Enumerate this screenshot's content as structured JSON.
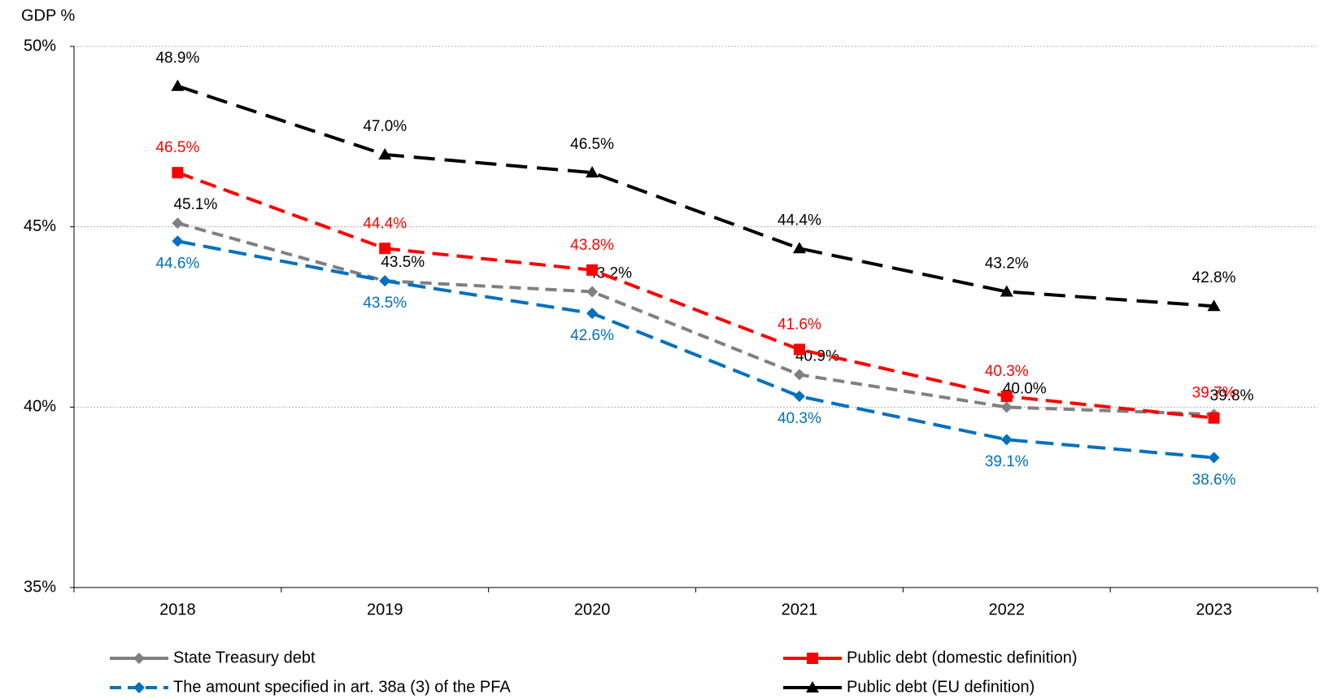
{
  "chart_data": {
    "type": "line",
    "ylabel": "GDP %",
    "categories": [
      "2018",
      "2019",
      "2020",
      "2021",
      "2022",
      "2023"
    ],
    "ylim": [
      35,
      50
    ],
    "yticks": [
      {
        "value": 35,
        "label": "35%"
      },
      {
        "value": 40,
        "label": "40%"
      },
      {
        "value": 45,
        "label": "45%"
      },
      {
        "value": 50,
        "label": "50%"
      }
    ],
    "grid": true,
    "legend": "bottom",
    "series": [
      {
        "name": "State Treasury debt",
        "color": "#808080",
        "marker": "diamond",
        "values": [
          45.1,
          43.5,
          43.2,
          40.9,
          40.0,
          39.8
        ],
        "value_labels": [
          "45.1%",
          "43.5%",
          "43.2%",
          "40.9%",
          "40.0%",
          "39.8%"
        ]
      },
      {
        "name": "Public debt (domestic definition)",
        "color": "#ff0000",
        "marker": "square",
        "values": [
          46.5,
          44.4,
          43.8,
          41.6,
          40.3,
          39.7
        ],
        "value_labels": [
          "46.5%",
          "44.4%",
          "43.8%",
          "41.6%",
          "40.3%",
          "39.7%"
        ]
      },
      {
        "name": "The amount specified in art. 38a (3) of the PFA",
        "color": "#0070c0",
        "marker": "diamond",
        "values": [
          44.6,
          43.5,
          42.6,
          40.3,
          39.1,
          38.6
        ],
        "value_labels": [
          "44.6%",
          "43.5%",
          "42.6%",
          "40.3%",
          "39.1%",
          "38.6%"
        ]
      },
      {
        "name": "Public debt (EU definition)",
        "color": "#000000",
        "marker": "triangle",
        "values": [
          48.9,
          47.0,
          46.5,
          44.4,
          43.2,
          42.8
        ],
        "value_labels": [
          "48.9%",
          "47.0%",
          "46.5%",
          "44.4%",
          "43.2%",
          "42.8%"
        ]
      }
    ]
  }
}
